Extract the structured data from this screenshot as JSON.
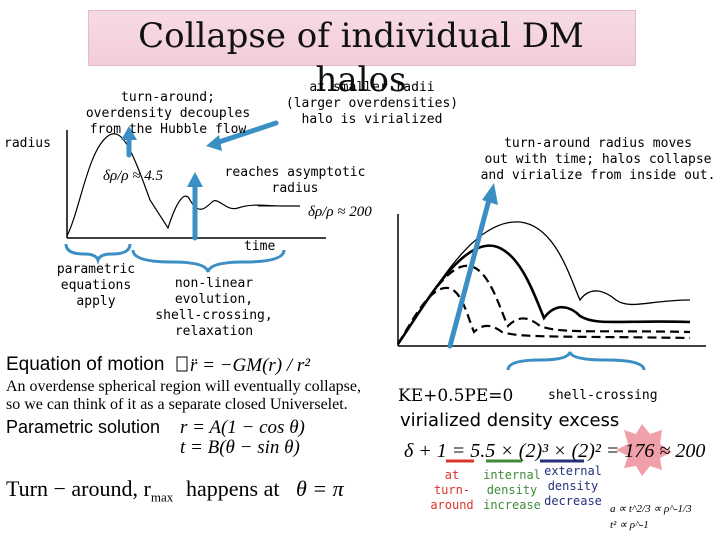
{
  "title": "Collapse of individual DM halos",
  "left_panel": {
    "radius_label": "radius",
    "turnaround_label": "turn-around;\noverdensity decouples\nfrom the Hubble flow",
    "turnaround_eq": "δρ/ρ ≈ 4.5",
    "smaller_radii_label": "at smaller radii\n(larger overdensities)\nhalo is virialized",
    "asymptotic_label": "reaches asymptotic\nradius",
    "asymptotic_eq": "δρ/ρ ≈ 200",
    "time_label": "time",
    "parametric_label": "parametric\nequations\napply",
    "nonlinear_label": "non-linear evolution,\nshell-crossing,\nrelaxation"
  },
  "right_panel": {
    "moves_label": "turn-around radius moves\nout with time; halos collapse\nand virialize from inside out.",
    "shell_crossing_label": "shell-crossing",
    "ke_pe": "KE+0.5PE=0",
    "virialized_label": "virialized density excess",
    "virial_eq": "δ + 1 = 5.5 × (2)³ × (2)² = 176 ≈ 200",
    "turn_around_note": "at turn-\naround",
    "internal_note": "internal\ndensity\nincrease",
    "external_note": "external\ndensity\ndecrease",
    "scaling_1": "a ∝ t^2/3 ∝ ρ^-1/3",
    "scaling_2": "t² ∝ ρ^-1"
  },
  "bottom_left": {
    "eom_label": "Equation of motion",
    "eom_eq": "r̈ = −GM(r) / r²",
    "collapse_text": "An overdense spherical region will eventually collapse,\nso we can think of it as a separate closed Universelet.",
    "parametric_solution_label": "Parametric solution",
    "param_r": "r = A(1 − cos θ)",
    "param_t": "t = B(θ − sin θ)",
    "turnaround_text": "Turn − around,  r",
    "rmax_sub": "max",
    "happens_text": "happens  at",
    "theta_pi": "θ = π"
  },
  "colors": {
    "title_bg": "#f3cdd8",
    "blue": "#3b8fc4",
    "red": "#d9342b",
    "green": "#3f8a3a",
    "navy": "#25317a",
    "burst": "#f0a0a8"
  }
}
